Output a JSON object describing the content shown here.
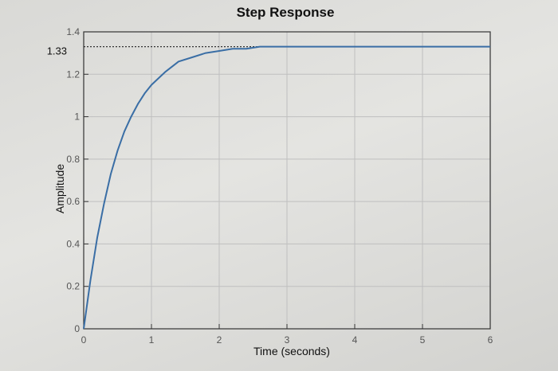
{
  "chart_data": {
    "type": "line",
    "title": "Step Response",
    "xlabel": "Time (seconds)",
    "ylabel": "Amplitude",
    "xlim": [
      0,
      6
    ],
    "ylim": [
      0,
      1.4
    ],
    "xticks": [
      "0",
      "1",
      "2",
      "3",
      "4",
      "5",
      "6"
    ],
    "yticks": [
      "0",
      "0.2",
      "0.4",
      "0.6",
      "0.8",
      "1",
      "1.2",
      "1.4"
    ],
    "grid": true,
    "annotation": {
      "label": "1.33",
      "y": 1.33,
      "style": "dotted"
    },
    "series": [
      {
        "color": "#3a6ea5",
        "x": [
          0,
          0.1,
          0.2,
          0.3,
          0.4,
          0.5,
          0.6,
          0.7,
          0.8,
          0.9,
          1.0,
          1.2,
          1.4,
          1.6,
          1.8,
          2.0,
          2.2,
          2.4,
          2.6,
          2.8,
          3.0,
          3.5,
          4.0,
          4.5,
          5.0,
          5.5,
          6.0
        ],
        "y": [
          0,
          0.23,
          0.43,
          0.59,
          0.73,
          0.84,
          0.93,
          1.0,
          1.06,
          1.11,
          1.15,
          1.21,
          1.26,
          1.28,
          1.3,
          1.31,
          1.32,
          1.32,
          1.33,
          1.33,
          1.33,
          1.33,
          1.33,
          1.33,
          1.33,
          1.33,
          1.33
        ]
      }
    ]
  }
}
